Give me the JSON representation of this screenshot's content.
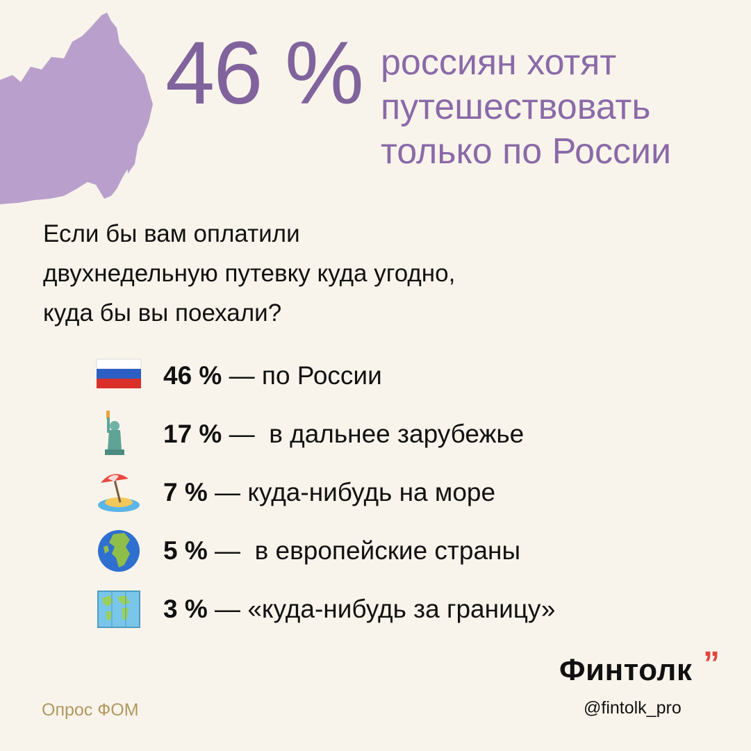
{
  "hero": {
    "percent": "46 %",
    "headline_lines": [
      "россиян хотят",
      "путешествовать",
      "только по России"
    ]
  },
  "question": {
    "lines": [
      "Если бы вам оплатили",
      "двухнедельную путевку куда угодно,",
      "куда бы вы поехали?"
    ]
  },
  "answers": [
    {
      "icon": "russia-flag-icon",
      "percent": "46 %",
      "value": 46,
      "dash": " — ",
      "label": "по России"
    },
    {
      "icon": "statue-of-liberty-icon",
      "percent": "17 %",
      "value": 17,
      "dash": " —  ",
      "label": "в дальнее зарубежье"
    },
    {
      "icon": "beach-umbrella-island-icon",
      "percent": "7 %",
      "value": 7,
      "dash": " — ",
      "label": "куда-нибудь на море"
    },
    {
      "icon": "globe-europe-africa-icon",
      "percent": "5 %",
      "value": 5,
      "dash": " —  ",
      "label": "в европейские страны"
    },
    {
      "icon": "world-map-icon",
      "percent": "3 %",
      "value": 3,
      "dash": " — ",
      "label": "«куда-нибудь за границу»"
    }
  ],
  "footer": {
    "source": "Опрос ФОМ",
    "brand": "Финтолк",
    "brand_mark": "”",
    "handle": "@fintolk_pro"
  },
  "colors": {
    "background": "#f9f4eb",
    "accent_purple": "#80639c",
    "map_purple": "#b9a0cc",
    "source_gold": "#b2975f",
    "brand_red": "#e0473f"
  }
}
